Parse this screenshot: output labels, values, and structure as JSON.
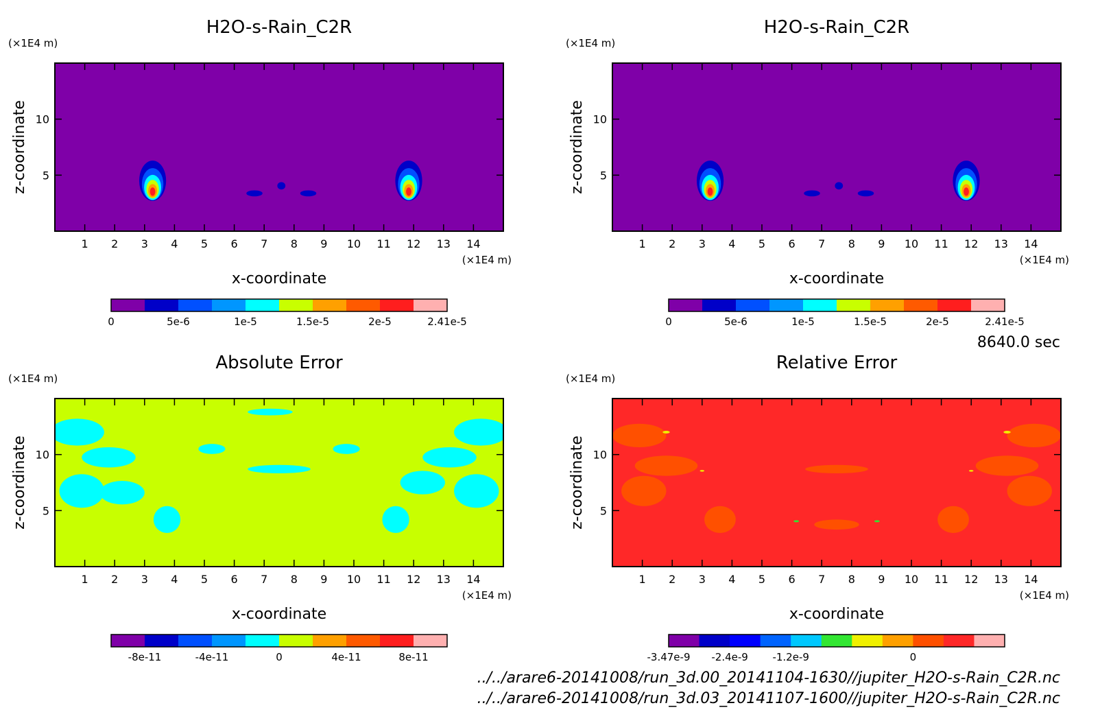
{
  "time_label": "8640.0 sec",
  "files": [
    "../../arare6-20141008/run_3d.00_20141104-1630//jupiter_H2O-s-Rain_C2R.nc",
    "../../arare6-20141008/run_3d.03_20141107-1600//jupiter_H2O-s-Rain_C2R.nc"
  ],
  "chart_data": [
    {
      "type": "heatmap",
      "title": "H2O-s-Rain_C2R",
      "xlabel": "x-coordinate",
      "ylabel": "z-coordinate",
      "xunit": "(×1E4 m)",
      "yunit": "(×1E4 m)",
      "xlim": [
        0,
        15
      ],
      "ylim": [
        0,
        15
      ],
      "xticks": [
        "1",
        "2",
        "3",
        "4",
        "5",
        "6",
        "7",
        "8",
        "9",
        "10",
        "11",
        "12",
        "13",
        "14"
      ],
      "yticks": [
        "5",
        "10"
      ],
      "colorbar": {
        "colors": [
          "#7f00a8",
          "#0000c8",
          "#0050ff",
          "#0096ff",
          "#00ffff",
          "#c8ff00",
          "#ffa000",
          "#ff5a00",
          "#ff1e1e",
          "#ffb0b0"
        ],
        "labels": [
          "0",
          "5e-6",
          "1e-5",
          "1.5e-5",
          "2e-5",
          "2.41e-5"
        ]
      }
    },
    {
      "type": "heatmap",
      "title": "H2O-s-Rain_C2R",
      "xlabel": "x-coordinate",
      "ylabel": "z-coordinate",
      "xunit": "(×1E4 m)",
      "yunit": "(×1E4 m)",
      "xlim": [
        0,
        15
      ],
      "ylim": [
        0,
        15
      ],
      "xticks": [
        "1",
        "2",
        "3",
        "4",
        "5",
        "6",
        "7",
        "8",
        "9",
        "10",
        "11",
        "12",
        "13",
        "14"
      ],
      "yticks": [
        "5",
        "10"
      ],
      "colorbar": {
        "colors": [
          "#7f00a8",
          "#0000c8",
          "#0050ff",
          "#0096ff",
          "#00ffff",
          "#c8ff00",
          "#ffa000",
          "#ff5a00",
          "#ff1e1e",
          "#ffb0b0"
        ],
        "labels": [
          "0",
          "5e-6",
          "1e-5",
          "1.5e-5",
          "2e-5",
          "2.41e-5"
        ]
      }
    },
    {
      "type": "heatmap",
      "title": "Absolute Error",
      "xlabel": "x-coordinate",
      "ylabel": "z-coordinate",
      "xunit": "(×1E4 m)",
      "yunit": "(×1E4 m)",
      "xlim": [
        0,
        15
      ],
      "ylim": [
        0,
        15
      ],
      "xticks": [
        "1",
        "2",
        "3",
        "4",
        "5",
        "6",
        "7",
        "8",
        "9",
        "10",
        "11",
        "12",
        "13",
        "14"
      ],
      "yticks": [
        "5",
        "10"
      ],
      "colorbar": {
        "colors": [
          "#7f00a8",
          "#0000c8",
          "#0050ff",
          "#0096ff",
          "#00ffff",
          "#c8ff00",
          "#ffa000",
          "#ff5a00",
          "#ff1e1e",
          "#ffb0b0"
        ],
        "labels": [
          "-8e-11",
          "-4e-11",
          "0",
          "4e-11",
          "8e-11"
        ]
      }
    },
    {
      "type": "heatmap",
      "title": "Relative Error",
      "xlabel": "x-coordinate",
      "ylabel": "z-coordinate",
      "xunit": "(×1E4 m)",
      "yunit": "(×1E4 m)",
      "xlim": [
        0,
        15
      ],
      "ylim": [
        0,
        15
      ],
      "xticks": [
        "1",
        "2",
        "3",
        "4",
        "5",
        "6",
        "7",
        "8",
        "9",
        "10",
        "11",
        "12",
        "13",
        "14"
      ],
      "yticks": [
        "5",
        "10"
      ],
      "colorbar": {
        "colors": [
          "#7f00a8",
          "#0000c8",
          "#0000ff",
          "#0064ff",
          "#00c8ff",
          "#32e632",
          "#f0f000",
          "#ffa000",
          "#ff5000",
          "#ff2828",
          "#ffb0b0"
        ],
        "labels": [
          "-3.47e-9",
          "-2.4e-9",
          "-1.2e-9",
          "0"
        ]
      }
    }
  ]
}
